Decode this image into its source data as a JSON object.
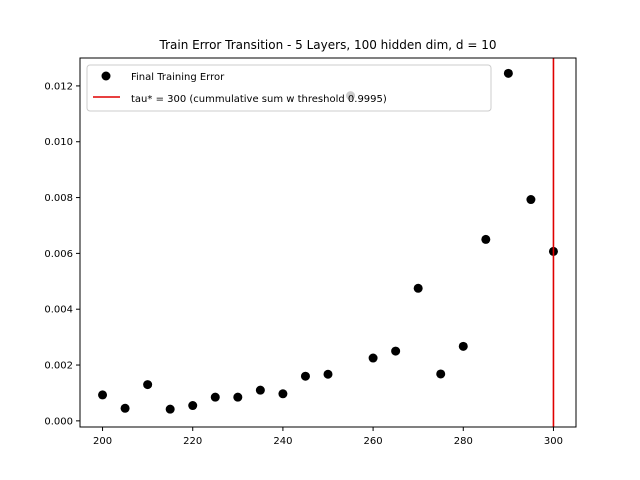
{
  "chart_data": {
    "type": "scatter",
    "title": "Train Error Transition - 5 Layers, 100 hidden dim, d = 10",
    "xlabel": "",
    "ylabel": "",
    "xlim": [
      195,
      305
    ],
    "ylim": [
      -0.00022,
      0.013
    ],
    "xticks": [
      200,
      220,
      240,
      260,
      280,
      300
    ],
    "yticks": [
      0.0,
      0.002,
      0.004,
      0.006,
      0.008,
      0.01,
      0.012
    ],
    "ytick_labels": [
      "0.000",
      "0.002",
      "0.004",
      "0.006",
      "0.008",
      "0.010",
      "0.012"
    ],
    "xtick_labels": [
      "200",
      "220",
      "240",
      "260",
      "280",
      "300"
    ],
    "grid": false,
    "legend_position": "top-left",
    "series": [
      {
        "name": "Final Training Error",
        "color": "#000000",
        "marker": "circle",
        "points": [
          {
            "x": 200,
            "y": 0.00093
          },
          {
            "x": 205,
            "y": 0.00045
          },
          {
            "x": 210,
            "y": 0.0013
          },
          {
            "x": 215,
            "y": 0.00042
          },
          {
            "x": 220,
            "y": 0.00055
          },
          {
            "x": 225,
            "y": 0.00085
          },
          {
            "x": 230,
            "y": 0.00085
          },
          {
            "x": 235,
            "y": 0.0011
          },
          {
            "x": 240,
            "y": 0.00097
          },
          {
            "x": 245,
            "y": 0.0016
          },
          {
            "x": 250,
            "y": 0.00167
          },
          {
            "x": 255,
            "y": 0.01165
          },
          {
            "x": 260,
            "y": 0.00225
          },
          {
            "x": 265,
            "y": 0.0025
          },
          {
            "x": 270,
            "y": 0.00475
          },
          {
            "x": 275,
            "y": 0.00168
          },
          {
            "x": 280,
            "y": 0.00267
          },
          {
            "x": 285,
            "y": 0.0065
          },
          {
            "x": 290,
            "y": 0.01245
          },
          {
            "x": 295,
            "y": 0.00793
          },
          {
            "x": 300,
            "y": 0.00607
          }
        ]
      }
    ],
    "vlines": [
      {
        "name": "tau* = 300 (cummulative sum w threshold 0.9995)",
        "x": 300,
        "color": "#e00000"
      }
    ]
  }
}
